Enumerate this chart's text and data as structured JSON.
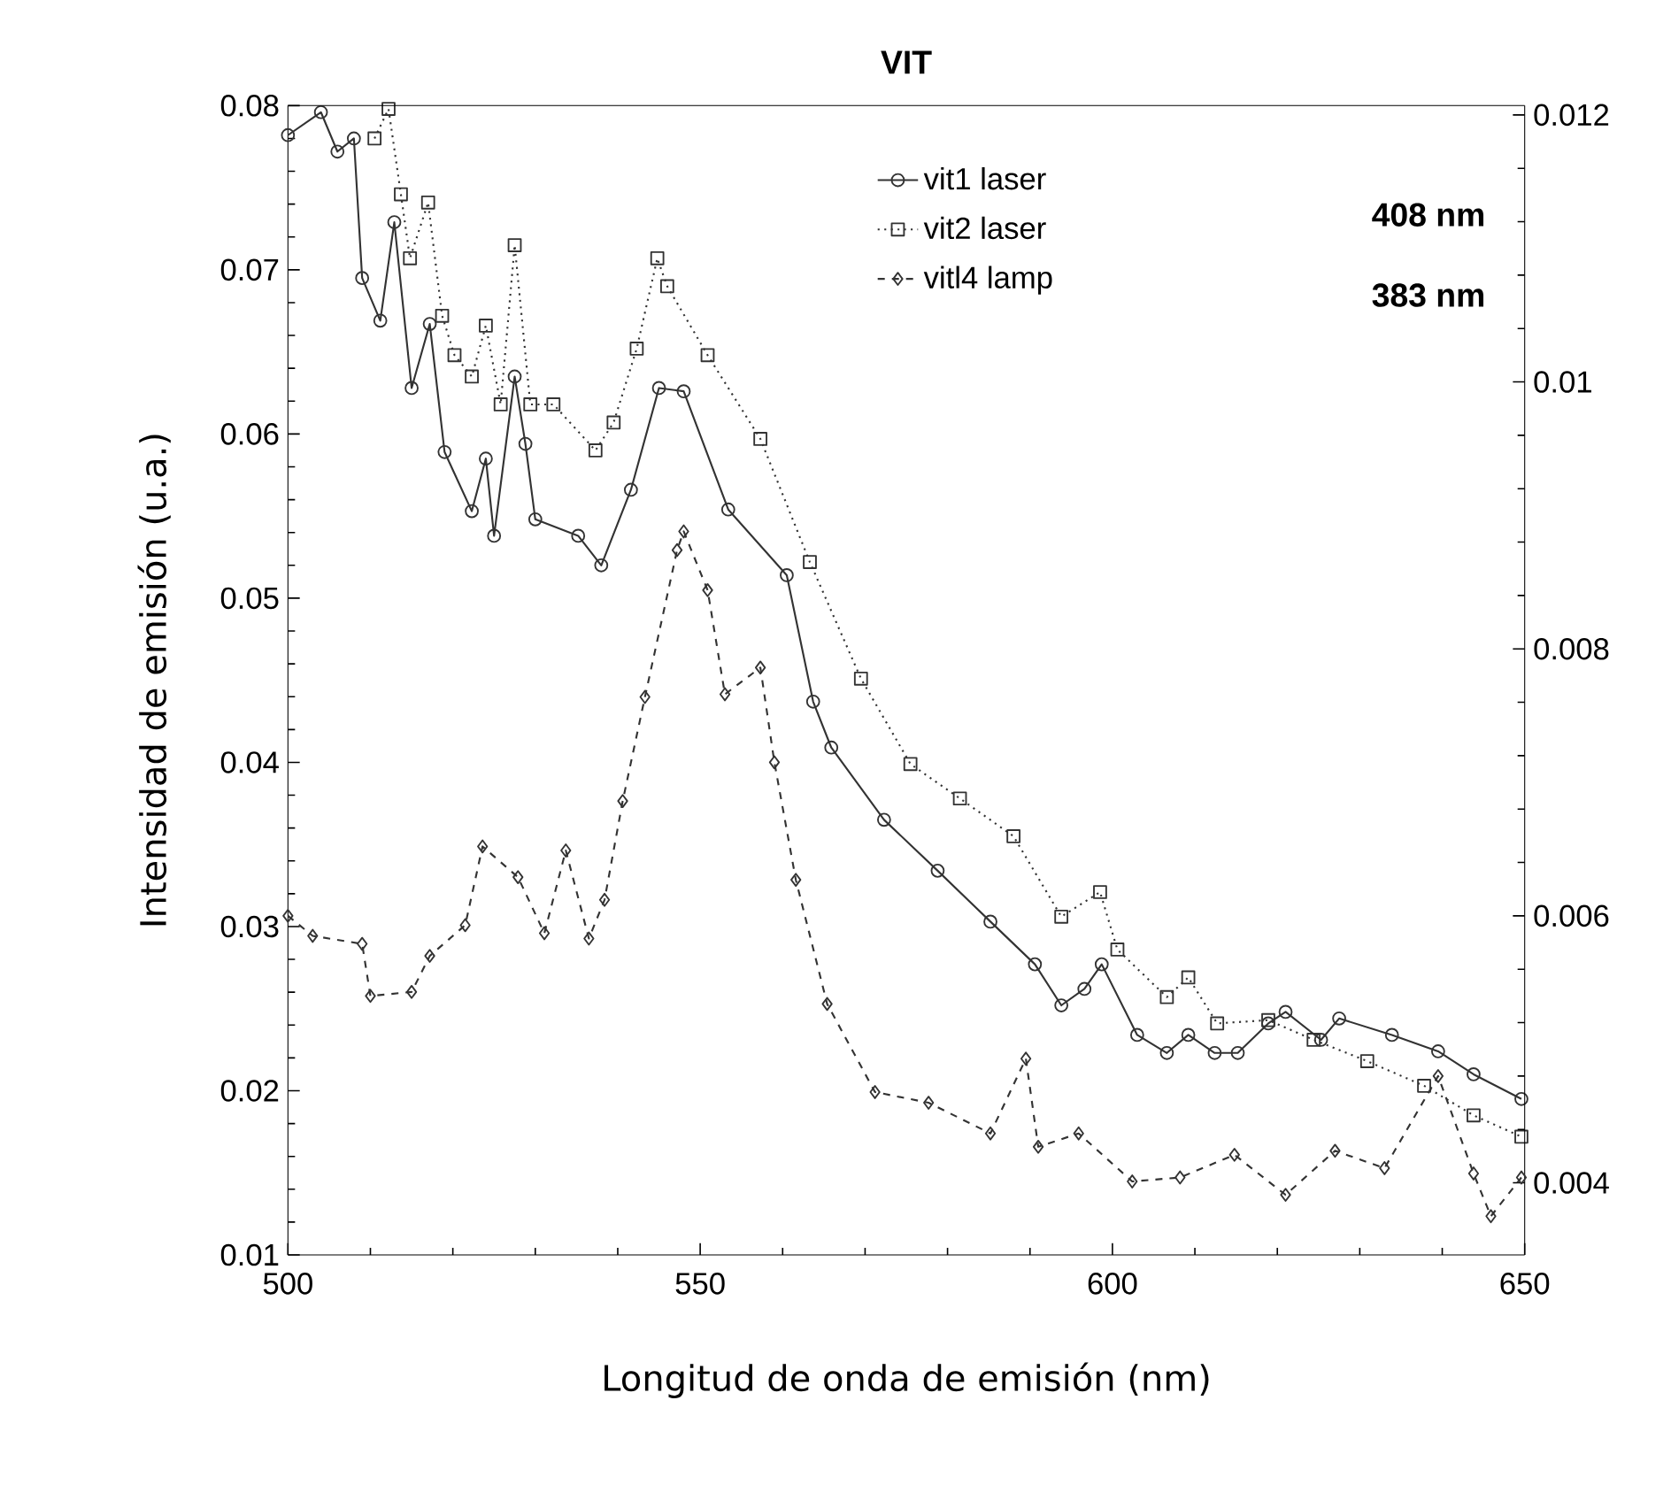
{
  "chart_data": {
    "type": "line",
    "title": "VIT",
    "xlabel": "Longitud de onda de emisión (nm)",
    "ylabel": "Intensidad de emisión (u.a.)",
    "xlim": [
      500,
      650
    ],
    "xticks": [
      500,
      550,
      600,
      650
    ],
    "ylim": [
      0.01,
      0.08
    ],
    "yticks": [
      0.01,
      0.02,
      0.03,
      0.04,
      0.05,
      0.06,
      0.07,
      0.08
    ],
    "y2lim": [
      0.00346,
      0.01207
    ],
    "y2ticks": [
      0.004,
      0.006,
      0.008,
      0.01,
      0.012
    ],
    "legend": "top right",
    "grid": false,
    "annotations": [
      "408 nm",
      "383 nm"
    ],
    "series": [
      {
        "name": "vit1 laser",
        "color": "#333333",
        "marker": "circle",
        "line_style": "solid",
        "x": [
          500,
          504,
          506,
          508,
          509,
          511.2,
          512.9,
          515,
          517.2,
          519,
          522.3,
          524,
          525,
          527.5,
          528.8,
          530,
          535.2,
          538,
          541.6,
          545,
          548,
          553.4,
          560.5,
          563.7,
          565.9,
          572.3,
          578.8,
          585.2,
          590.6,
          593.8,
          596.6,
          598.7,
          603,
          606.6,
          609.2,
          612.4,
          615.2,
          618.9,
          621,
          625.3,
          627.5,
          633.9,
          639.5,
          643.8,
          649.6
        ],
        "values": [
          0.0782,
          0.0796,
          0.0772,
          0.078,
          0.0695,
          0.0669,
          0.0729,
          0.0628,
          0.0667,
          0.0589,
          0.0553,
          0.0585,
          0.0538,
          0.0635,
          0.0594,
          0.0548,
          0.0538,
          0.052,
          0.0566,
          0.0628,
          0.0626,
          0.0554,
          0.0514,
          0.0437,
          0.0409,
          0.0365,
          0.0334,
          0.0303,
          0.0277,
          0.0252,
          0.0262,
          0.0277,
          0.0234,
          0.0223,
          0.0234,
          0.0223,
          0.0223,
          0.0241,
          0.0248,
          0.0231,
          0.0244,
          0.0234,
          0.0224,
          0.021,
          0.0195
        ]
      },
      {
        "name": "vit2 laser",
        "color": "#333333",
        "marker": "square",
        "line_style": "dotted",
        "x": [
          510.5,
          512.2,
          513.7,
          514.8,
          517,
          518.7,
          520.2,
          522.3,
          524,
          525.8,
          527.5,
          529.4,
          532.2,
          537.3,
          539.5,
          542.3,
          544.8,
          546,
          550.9,
          557.3,
          563.3,
          569.5,
          575.5,
          581.5,
          588,
          593.8,
          598.5,
          600.6,
          606.6,
          609.2,
          612.7,
          618.9,
          624.4,
          630.9,
          637.8,
          643.8,
          649.6
        ],
        "values": [
          0.078,
          0.0798,
          0.0746,
          0.0707,
          0.0741,
          0.0672,
          0.0648,
          0.0635,
          0.0666,
          0.0618,
          0.0715,
          0.0618,
          0.0618,
          0.059,
          0.0607,
          0.0652,
          0.0707,
          0.069,
          0.0648,
          0.0597,
          0.0522,
          0.0451,
          0.0399,
          0.0378,
          0.0355,
          0.0306,
          0.0321,
          0.0286,
          0.0257,
          0.0269,
          0.0241,
          0.0243,
          0.0231,
          0.0218,
          0.0203,
          0.0185,
          0.0172
        ]
      },
      {
        "name": "vitl4 lamp",
        "color": "#333333",
        "marker": "diamond",
        "line_style": "dashed",
        "axis": "y2",
        "x": [
          500,
          503,
          509,
          510,
          515,
          517.2,
          521.5,
          523.6,
          527.9,
          531.1,
          533.7,
          536.5,
          538.4,
          540.6,
          543.3,
          547.2,
          548,
          550.9,
          553,
          557.3,
          559,
          561.6,
          565.4,
          571.2,
          577.7,
          585.2,
          589.5,
          591,
          595.9,
          602.4,
          608.2,
          614.8,
          621,
          627,
          633,
          639.5,
          643.8,
          645.9,
          649.6
        ],
        "values": [
          0.006,
          0.00585,
          0.00579,
          0.0054,
          0.00543,
          0.0057,
          0.00593,
          0.00652,
          0.00629,
          0.00587,
          0.00649,
          0.00583,
          0.00612,
          0.00686,
          0.00764,
          0.00874,
          0.00888,
          0.00844,
          0.00766,
          0.00786,
          0.00715,
          0.00627,
          0.00534,
          0.00468,
          0.0046,
          0.00437,
          0.00493,
          0.00427,
          0.00437,
          0.00401,
          0.00404,
          0.00421,
          0.00391,
          0.00424,
          0.00411,
          0.0048,
          0.00407,
          0.00375,
          0.00404
        ]
      }
    ]
  }
}
